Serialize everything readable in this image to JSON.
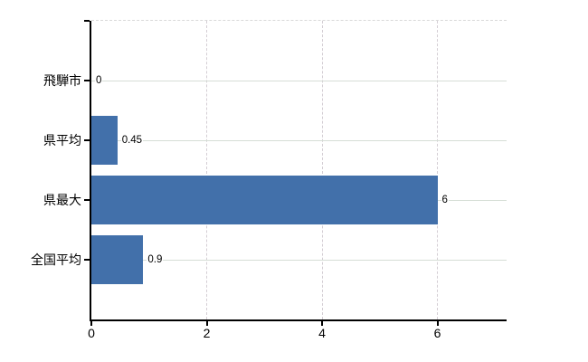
{
  "chart_data": {
    "type": "bar",
    "orientation": "horizontal",
    "title": "",
    "xlabel": "",
    "ylabel": "",
    "categories": [
      "飛騨市",
      "県平均",
      "県最大",
      "全国平均"
    ],
    "values": [
      0,
      0.45,
      6,
      0.9
    ],
    "data_labels": [
      "0",
      "0.45",
      "6",
      "0.9"
    ],
    "xticks": [
      0,
      2,
      4,
      6
    ],
    "xtick_labels": [
      "0",
      "2",
      "4",
      "6"
    ],
    "xlim": [
      0,
      7.2
    ],
    "grid": true,
    "legend": false,
    "colors": {
      "bar": "#4270aa",
      "vertical_grid": "#d4ced4",
      "horizontal_grid": "#d6ded6",
      "plot_top_border": "#d9d9d9",
      "axis": "#000000",
      "background": "#ffffff",
      "text": "#000000"
    }
  }
}
